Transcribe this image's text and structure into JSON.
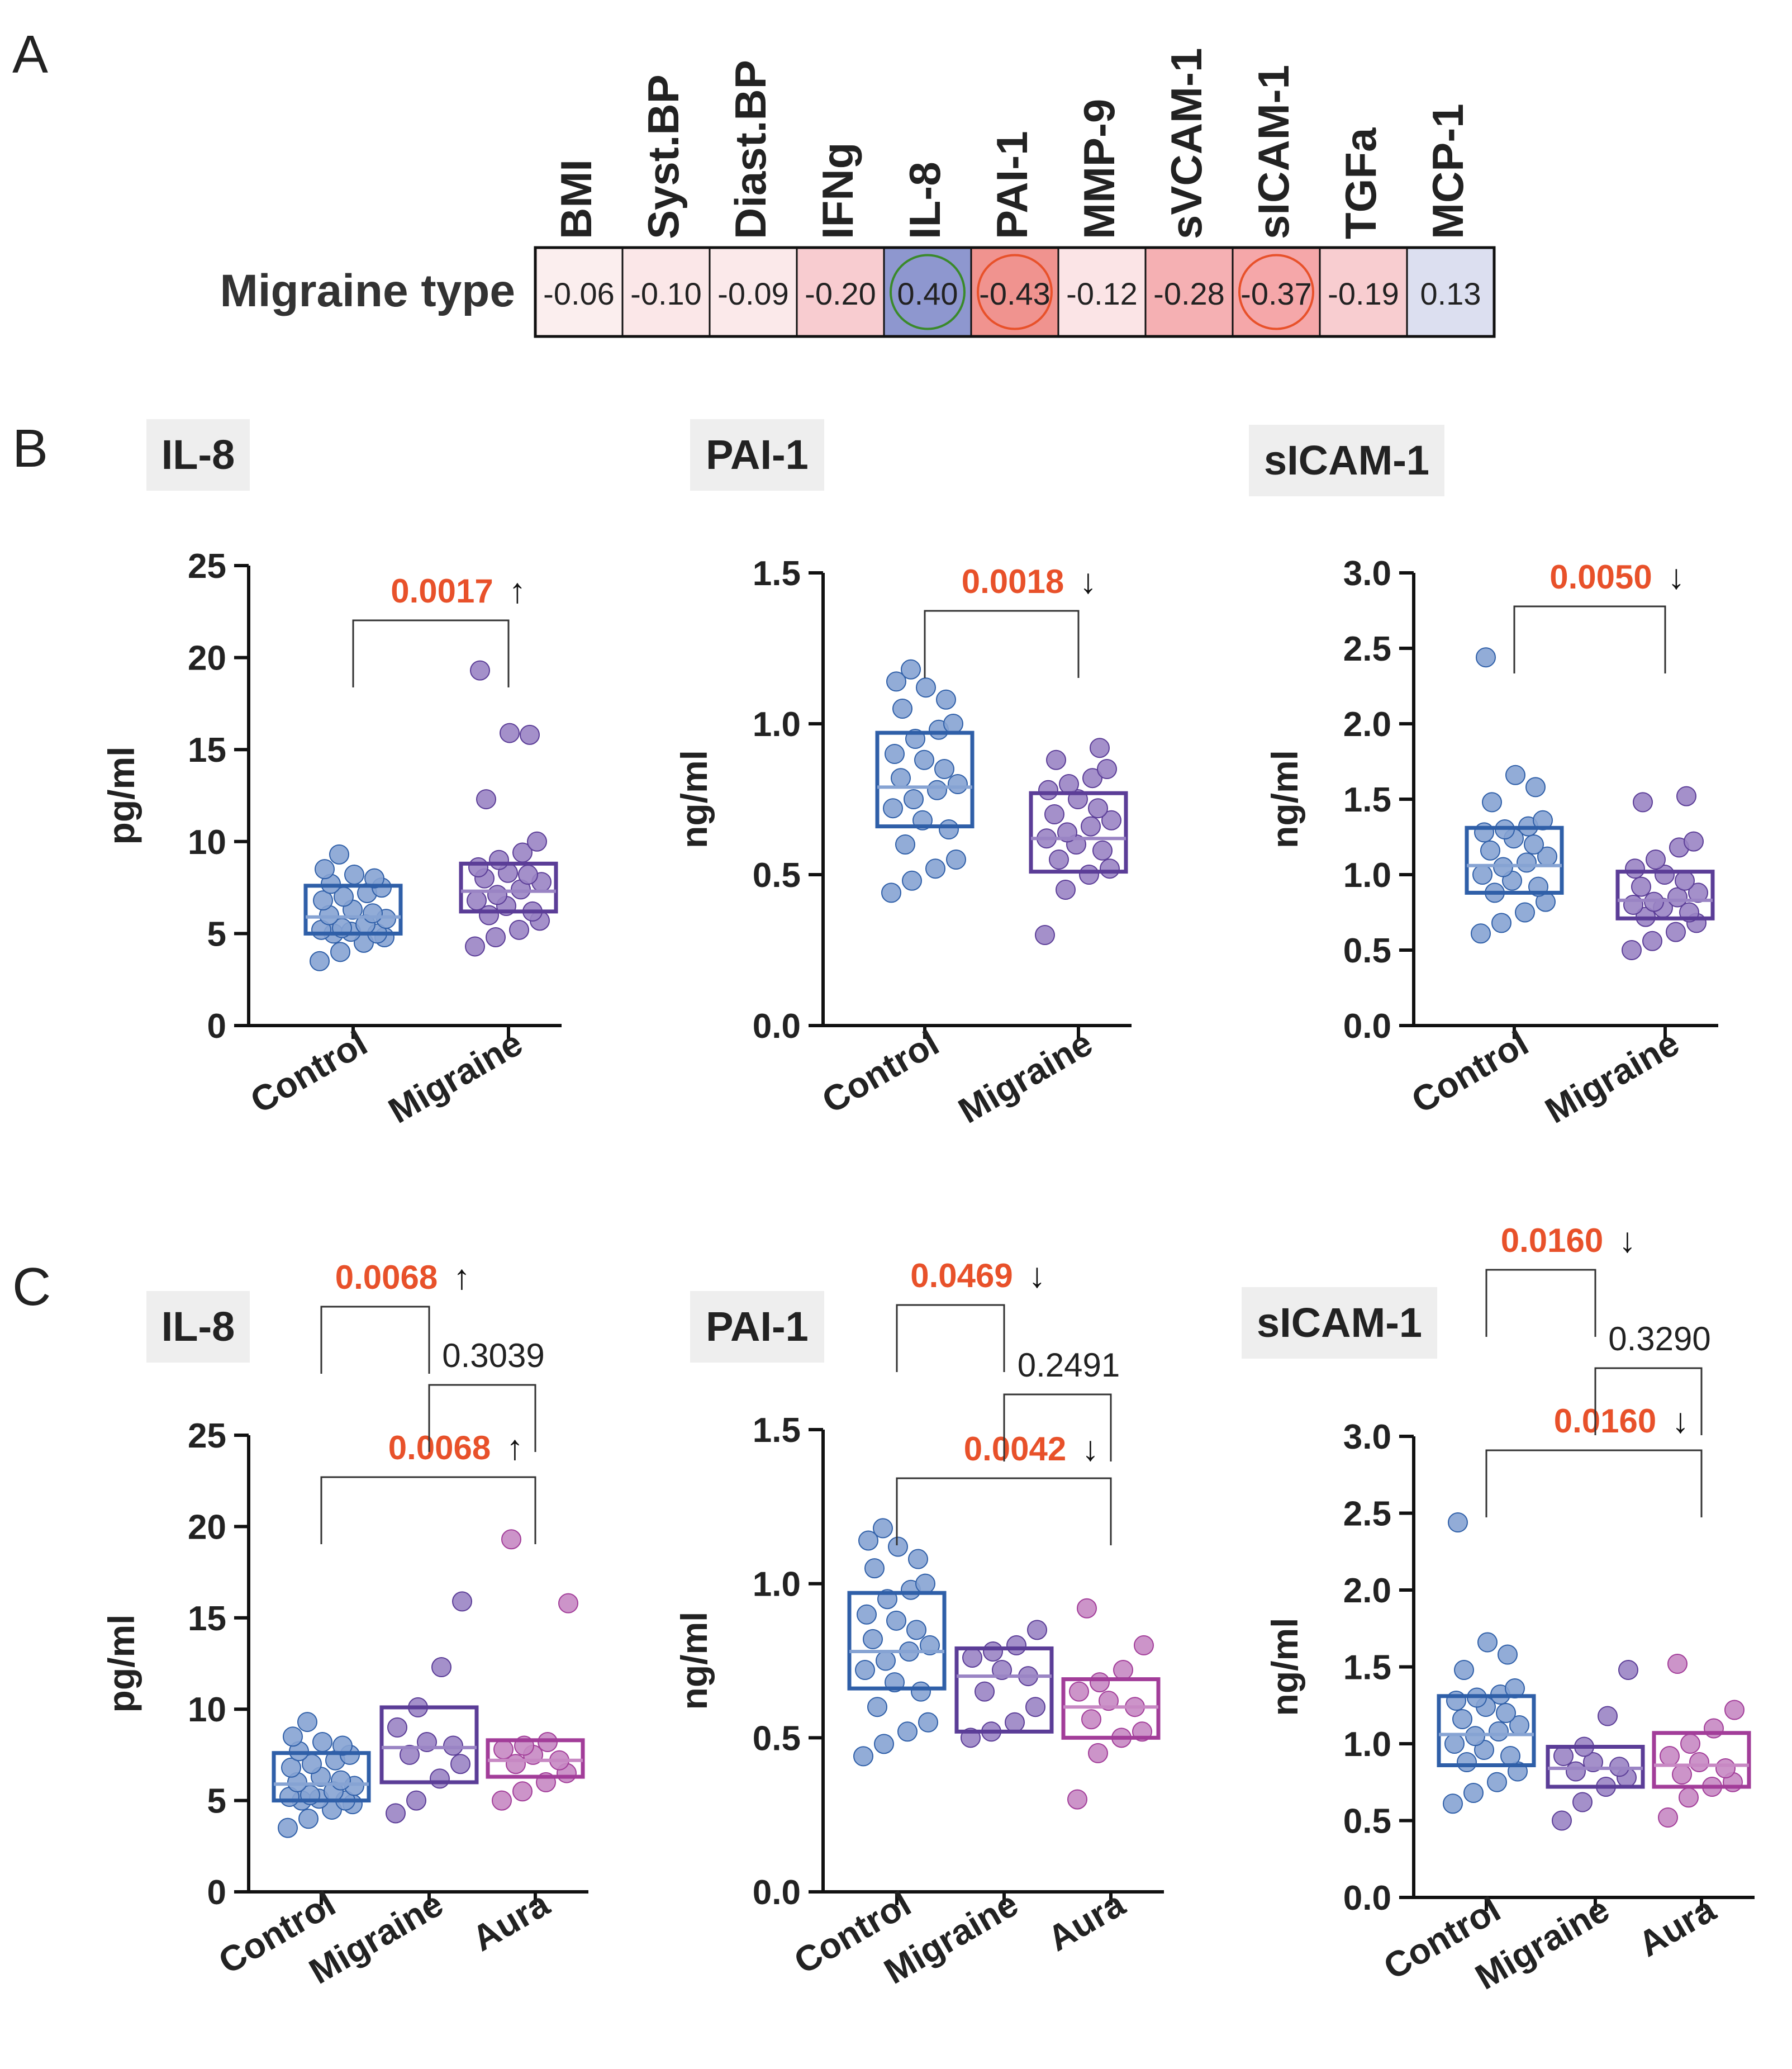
{
  "panel_labels": {
    "a": "A",
    "b": "B",
    "c": "C"
  },
  "heatmap": {
    "row_label": "Migraine type",
    "columns": [
      "BMI",
      "Syst.BP",
      "Diast.BP",
      "IFNg",
      "IL-8",
      "PAI-1",
      "MMP-9",
      "sVCAM-1",
      "sICAM-1",
      "TGFa",
      "MCP-1"
    ],
    "values": [
      "-0.06",
      "-0.10",
      "-0.09",
      "-0.20",
      "0.40",
      "-0.43",
      "-0.12",
      "-0.28",
      "-0.37",
      "-0.19",
      "0.13"
    ],
    "fills": [
      "#fbeeee",
      "#fbe7e8",
      "#fbe9ea",
      "#f8ccd0",
      "#8e97cf",
      "#f0938f",
      "#fbe4e6",
      "#f5b0b3",
      "#f5a7a9",
      "#f8cdd0",
      "#dcdff0"
    ],
    "circled": [
      "IL-8",
      "PAI-1",
      "sICAM-1"
    ]
  },
  "colors": {
    "control": "#2f5fa8",
    "control_pt": "#86a3d3",
    "migraine": "#5b3d97",
    "migraine_pt": "#9a84c4",
    "aura": "#a23d99",
    "aura_pt": "#c788c3",
    "sig": "#e8512a",
    "nonsig": "#222222"
  },
  "chart_data": [
    {
      "type": "box-scatter",
      "panel": "B",
      "title": "IL-8",
      "ylabel": "pg/ml",
      "ylim": [
        0,
        25
      ],
      "yticks": [
        "0",
        "5",
        "10",
        "15",
        "20",
        "25"
      ],
      "categories": [
        "Control",
        "Migraine"
      ],
      "boxes": [
        {
          "q1": 5.0,
          "median": 5.9,
          "q3": 7.6
        },
        {
          "q1": 6.2,
          "median": 7.3,
          "q3": 8.8
        }
      ],
      "points": [
        [
          3.5,
          4.0,
          4.5,
          4.8,
          5.0,
          5.0,
          5.1,
          5.2,
          5.3,
          5.5,
          5.8,
          6.0,
          6.1,
          6.3,
          6.8,
          7.0,
          7.2,
          7.5,
          7.7,
          8.0,
          8.2,
          8.5,
          9.3
        ],
        [
          4.3,
          4.8,
          5.2,
          5.7,
          6.0,
          6.2,
          6.5,
          6.8,
          7.1,
          7.4,
          7.8,
          8.0,
          8.2,
          8.3,
          8.6,
          9.0,
          9.4,
          10.0,
          12.3,
          15.8,
          15.9,
          19.3
        ]
      ],
      "comparisons": [
        {
          "from": 0,
          "to": 1,
          "p": "0.0017",
          "arrow": "↑",
          "sig": true
        }
      ]
    },
    {
      "type": "box-scatter",
      "panel": "B",
      "title": "PAI-1",
      "ylabel": "ng/ml",
      "ylim": [
        0,
        1.5
      ],
      "yticks": [
        "0.0",
        "0.5",
        "1.0",
        "1.5"
      ],
      "categories": [
        "Control",
        "Migraine"
      ],
      "boxes": [
        {
          "q1": 0.66,
          "median": 0.79,
          "q3": 0.97
        },
        {
          "q1": 0.51,
          "median": 0.62,
          "q3": 0.77
        }
      ],
      "points": [
        [
          0.44,
          0.48,
          0.52,
          0.55,
          0.6,
          0.65,
          0.68,
          0.72,
          0.75,
          0.78,
          0.8,
          0.82,
          0.85,
          0.88,
          0.9,
          0.95,
          0.98,
          1.0,
          1.05,
          1.08,
          1.12,
          1.14,
          1.18
        ],
        [
          0.3,
          0.45,
          0.5,
          0.52,
          0.55,
          0.58,
          0.6,
          0.62,
          0.64,
          0.66,
          0.68,
          0.7,
          0.72,
          0.75,
          0.78,
          0.8,
          0.82,
          0.85,
          0.88,
          0.92
        ]
      ],
      "comparisons": [
        {
          "from": 0,
          "to": 1,
          "p": "0.0018",
          "arrow": "↓",
          "sig": true
        }
      ]
    },
    {
      "type": "box-scatter",
      "panel": "B",
      "title": "sICAM-1",
      "ylabel": "ng/ml",
      "ylim": [
        0,
        3.0
      ],
      "yticks": [
        "0.0",
        "0.5",
        "1.0",
        "1.5",
        "2.0",
        "2.5",
        "3.0"
      ],
      "categories": [
        "Control",
        "Migraine"
      ],
      "boxes": [
        {
          "q1": 0.88,
          "median": 1.06,
          "q3": 1.31
        },
        {
          "q1": 0.71,
          "median": 0.83,
          "q3": 1.02
        }
      ],
      "points": [
        [
          0.61,
          0.68,
          0.75,
          0.82,
          0.88,
          0.92,
          0.96,
          1.0,
          1.05,
          1.08,
          1.12,
          1.16,
          1.2,
          1.24,
          1.28,
          1.3,
          1.32,
          1.36,
          1.48,
          1.58,
          1.66,
          2.44
        ],
        [
          0.5,
          0.56,
          0.62,
          0.68,
          0.72,
          0.75,
          0.78,
          0.8,
          0.82,
          0.85,
          0.88,
          0.92,
          0.96,
          1.0,
          1.04,
          1.1,
          1.18,
          1.22,
          1.48,
          1.52
        ]
      ],
      "comparisons": [
        {
          "from": 0,
          "to": 1,
          "p": "0.0050",
          "arrow": "↓",
          "sig": true
        }
      ]
    },
    {
      "type": "box-scatter",
      "panel": "C",
      "title": "IL-8",
      "ylabel": "pg/ml",
      "ylim": [
        0,
        25
      ],
      "yticks": [
        "0",
        "5",
        "10",
        "15",
        "20",
        "25"
      ],
      "categories": [
        "Control",
        "Migraine",
        "Aura"
      ],
      "boxes": [
        {
          "q1": 5.0,
          "median": 5.9,
          "q3": 7.6
        },
        {
          "q1": 6.0,
          "median": 7.9,
          "q3": 10.1
        },
        {
          "q1": 6.3,
          "median": 7.2,
          "q3": 8.3
        }
      ],
      "points": [
        [
          3.5,
          4.0,
          4.5,
          4.8,
          5.0,
          5.0,
          5.1,
          5.2,
          5.3,
          5.5,
          5.8,
          6.0,
          6.1,
          6.3,
          6.8,
          7.0,
          7.2,
          7.5,
          7.7,
          8.0,
          8.2,
          8.5,
          9.3
        ],
        [
          4.3,
          5.0,
          6.2,
          7.0,
          7.5,
          8.0,
          8.2,
          9.0,
          10.1,
          12.3,
          15.9
        ],
        [
          5.0,
          5.5,
          6.0,
          6.5,
          7.0,
          7.2,
          7.5,
          7.8,
          8.0,
          8.2,
          15.8,
          19.3
        ]
      ],
      "comparisons": [
        {
          "from": 0,
          "to": 2,
          "p": "0.0068",
          "arrow": "↑",
          "sig": true,
          "level": 2
        },
        {
          "from": 1,
          "to": 2,
          "p": "0.3039",
          "arrow": "",
          "sig": false,
          "level": 1
        },
        {
          "from": 0,
          "to": 1,
          "p": "0.0068",
          "arrow": "↑",
          "sig": true,
          "level": 0
        }
      ]
    },
    {
      "type": "box-scatter",
      "panel": "C",
      "title": "PAI-1",
      "ylabel": "ng/ml",
      "ylim": [
        0,
        1.5
      ],
      "yticks": [
        "0.0",
        "0.5",
        "1.0",
        "1.5"
      ],
      "categories": [
        "Control",
        "Migraine",
        "Aura"
      ],
      "boxes": [
        {
          "q1": 0.66,
          "median": 0.78,
          "q3": 0.97
        },
        {
          "q1": 0.52,
          "median": 0.7,
          "q3": 0.79
        },
        {
          "q1": 0.5,
          "median": 0.6,
          "q3": 0.69
        }
      ],
      "points": [
        [
          0.44,
          0.48,
          0.52,
          0.55,
          0.6,
          0.65,
          0.68,
          0.72,
          0.75,
          0.78,
          0.8,
          0.82,
          0.85,
          0.88,
          0.9,
          0.95,
          0.98,
          1.0,
          1.05,
          1.08,
          1.12,
          1.14,
          1.18
        ],
        [
          0.5,
          0.52,
          0.55,
          0.6,
          0.65,
          0.7,
          0.72,
          0.76,
          0.78,
          0.8,
          0.85
        ],
        [
          0.3,
          0.45,
          0.5,
          0.52,
          0.56,
          0.6,
          0.62,
          0.65,
          0.68,
          0.72,
          0.8,
          0.92
        ]
      ],
      "comparisons": [
        {
          "from": 0,
          "to": 2,
          "p": "0.0042",
          "arrow": "↓",
          "sig": true,
          "level": 2
        },
        {
          "from": 1,
          "to": 2,
          "p": "0.2491",
          "arrow": "",
          "sig": false,
          "level": 1
        },
        {
          "from": 0,
          "to": 1,
          "p": "0.0469",
          "arrow": "↓",
          "sig": true,
          "level": 0
        }
      ]
    },
    {
      "type": "box-scatter",
      "panel": "C",
      "title": "sICAM-1",
      "ylabel": "ng/ml",
      "ylim": [
        0,
        3.0
      ],
      "yticks": [
        "0.0",
        "0.5",
        "1.0",
        "1.5",
        "2.0",
        "2.5",
        "3.0"
      ],
      "categories": [
        "Control",
        "Migraine",
        "Aura"
      ],
      "boxes": [
        {
          "q1": 0.86,
          "median": 1.06,
          "q3": 1.31
        },
        {
          "q1": 0.72,
          "median": 0.84,
          "q3": 0.98
        },
        {
          "q1": 0.72,
          "median": 0.86,
          "q3": 1.07
        }
      ],
      "points": [
        [
          0.61,
          0.68,
          0.75,
          0.82,
          0.88,
          0.92,
          0.96,
          1.0,
          1.05,
          1.08,
          1.12,
          1.16,
          1.2,
          1.24,
          1.28,
          1.3,
          1.32,
          1.36,
          1.48,
          1.58,
          1.66,
          2.44
        ],
        [
          0.5,
          0.62,
          0.72,
          0.78,
          0.82,
          0.85,
          0.88,
          0.92,
          0.98,
          1.18,
          1.48
        ],
        [
          0.52,
          0.65,
          0.72,
          0.75,
          0.8,
          0.84,
          0.88,
          0.92,
          1.0,
          1.1,
          1.22,
          1.52
        ]
      ],
      "comparisons": [
        {
          "from": 0,
          "to": 2,
          "p": "0.0160",
          "arrow": "↓",
          "sig": true,
          "level": 2
        },
        {
          "from": 1,
          "to": 2,
          "p": "0.3290",
          "arrow": "",
          "sig": false,
          "level": 1
        },
        {
          "from": 0,
          "to": 1,
          "p": "0.0160",
          "arrow": "↓",
          "sig": true,
          "level": 0
        }
      ]
    }
  ]
}
